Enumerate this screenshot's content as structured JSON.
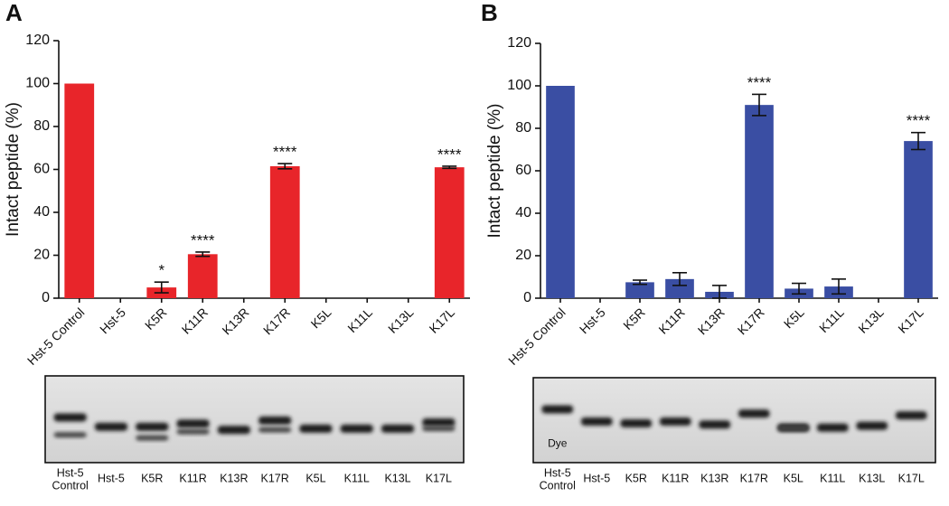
{
  "chart_data": [
    {
      "type": "bar",
      "panel": "A",
      "ylabel": "Intact peptide (%)",
      "color": "#e8252a",
      "categories": [
        "Hst-5 Control",
        "Hst-5",
        "K5R",
        "K11R",
        "K13R",
        "K17R",
        "K5L",
        "K11L",
        "K13L",
        "K17L"
      ],
      "values": [
        100,
        0,
        5,
        20.5,
        0,
        61.5,
        0,
        0,
        0,
        61
      ],
      "errors": [
        null,
        null,
        2.5,
        1,
        null,
        1.2,
        null,
        null,
        null,
        0.5
      ],
      "significance": [
        null,
        null,
        "*",
        "****",
        null,
        "****",
        null,
        null,
        null,
        "****"
      ],
      "ylim": [
        0,
        120
      ],
      "yticks": [
        0,
        20,
        40,
        60,
        80,
        100,
        120
      ],
      "gel_lanes": [
        [
          "Hst-5",
          "Control"
        ],
        [
          "Hst-5"
        ],
        [
          "K5R"
        ],
        [
          "K11R"
        ],
        [
          "K13R"
        ],
        [
          "K17R"
        ],
        [
          "K5L"
        ],
        [
          "K11L"
        ],
        [
          "K13L"
        ],
        [
          "K17L"
        ]
      ]
    },
    {
      "type": "bar",
      "panel": "B",
      "ylabel": "Intact peptide (%)",
      "color": "#3a4ea3",
      "categories": [
        "Hst-5 Control",
        "Hst-5",
        "K5R",
        "K11R",
        "K13R",
        "K17R",
        "K5L",
        "K11L",
        "K13L",
        "K17L"
      ],
      "values": [
        100,
        0,
        7.5,
        9,
        3,
        91,
        4.5,
        5.5,
        0,
        74
      ],
      "errors": [
        null,
        null,
        1,
        3,
        3,
        5,
        2.5,
        3.5,
        null,
        4
      ],
      "significance": [
        null,
        null,
        null,
        null,
        null,
        "****",
        null,
        null,
        null,
        "****"
      ],
      "ylim": [
        0,
        120
      ],
      "yticks": [
        0,
        20,
        40,
        60,
        80,
        100,
        120
      ],
      "gel_lanes": [
        [
          "Hst-5",
          "Control"
        ],
        [
          "Hst-5"
        ],
        [
          "K5R"
        ],
        [
          "K11R"
        ],
        [
          "K13R"
        ],
        [
          "K17R"
        ],
        [
          "K5L"
        ],
        [
          "K11L"
        ],
        [
          "K13L"
        ],
        [
          "K17L"
        ]
      ],
      "gel_annotation": "Dye"
    }
  ]
}
